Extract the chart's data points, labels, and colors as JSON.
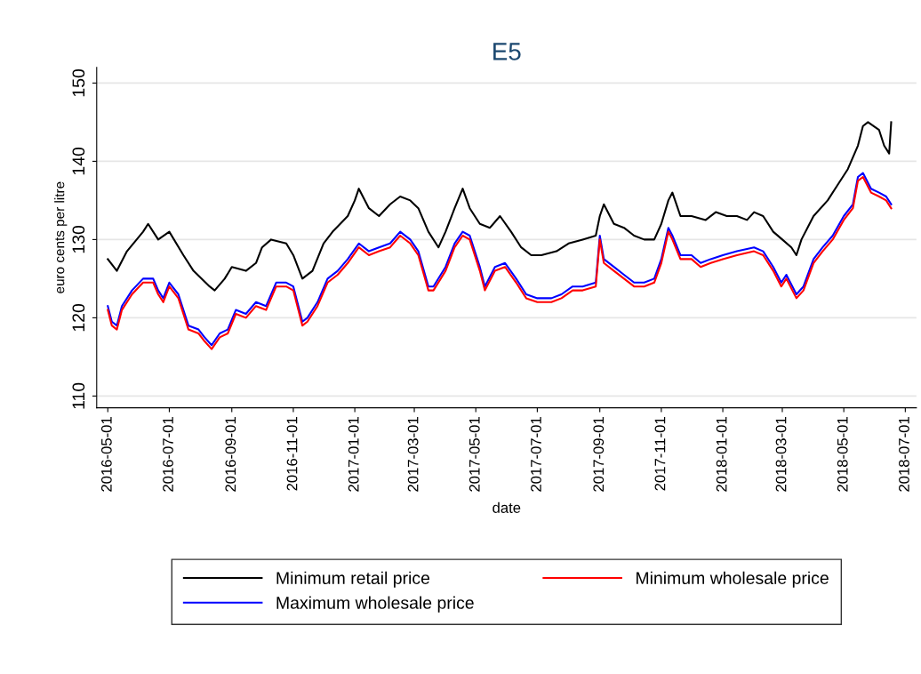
{
  "chart_data": {
    "type": "line",
    "title": "E5",
    "xlabel": "date",
    "ylabel": "euro cents per litre",
    "xlim": [
      "2016-04-20",
      "2018-07-12"
    ],
    "ylim": [
      108.5,
      152
    ],
    "xticks": [
      "2016-05-01",
      "2016-07-01",
      "2016-09-01",
      "2016-11-01",
      "2017-01-01",
      "2017-03-01",
      "2017-05-01",
      "2017-07-01",
      "2017-09-01",
      "2017-11-01",
      "2018-01-01",
      "2018-03-01",
      "2018-05-01",
      "2018-07-01"
    ],
    "yticks": [
      110,
      120,
      130,
      140,
      150
    ],
    "grid": "y",
    "legend": "bottom",
    "marker": "none",
    "line_style": "solid",
    "series": [
      {
        "name": "Minimum retail price",
        "color": "#000000",
        "x": [
          "2016-05-01",
          "2016-05-10",
          "2016-05-20",
          "2016-06-05",
          "2016-06-10",
          "2016-06-20",
          "2016-07-01",
          "2016-07-15",
          "2016-07-25",
          "2016-08-10",
          "2016-08-15",
          "2016-08-25",
          "2016-09-01",
          "2016-09-15",
          "2016-09-25",
          "2016-10-01",
          "2016-10-10",
          "2016-10-25",
          "2016-11-01",
          "2016-11-10",
          "2016-11-20",
          "2016-12-01",
          "2016-12-10",
          "2016-12-25",
          "2017-01-01",
          "2017-01-05",
          "2017-01-15",
          "2017-01-25",
          "2017-02-05",
          "2017-02-15",
          "2017-02-25",
          "2017-03-05",
          "2017-03-15",
          "2017-03-25",
          "2017-04-01",
          "2017-04-10",
          "2017-04-18",
          "2017-04-25",
          "2017-05-05",
          "2017-05-15",
          "2017-05-25",
          "2017-06-05",
          "2017-06-15",
          "2017-06-25",
          "2017-07-05",
          "2017-07-20",
          "2017-08-01",
          "2017-08-15",
          "2017-08-28",
          "2017-09-01",
          "2017-09-05",
          "2017-09-15",
          "2017-09-25",
          "2017-10-05",
          "2017-10-15",
          "2017-10-25",
          "2017-11-01",
          "2017-11-08",
          "2017-11-12",
          "2017-11-20",
          "2017-12-01",
          "2017-12-15",
          "2017-12-25",
          "2018-01-05",
          "2018-01-15",
          "2018-01-25",
          "2018-02-01",
          "2018-02-10",
          "2018-02-20",
          "2018-03-01",
          "2018-03-10",
          "2018-03-15",
          "2018-03-20",
          "2018-04-01",
          "2018-04-15",
          "2018-04-25",
          "2018-05-05",
          "2018-05-15",
          "2018-05-20",
          "2018-05-25",
          "2018-06-05",
          "2018-06-10",
          "2018-06-15",
          "2018-06-17"
        ],
        "values": [
          127.5,
          126,
          128.5,
          131,
          132,
          130,
          131,
          128,
          126,
          124,
          123.5,
          125,
          126.5,
          126,
          127,
          129,
          130,
          129.5,
          128,
          125,
          126,
          129.5,
          131,
          133,
          135,
          136.5,
          134,
          133,
          134.5,
          135.5,
          135,
          134,
          131,
          129,
          131,
          134,
          136.5,
          134,
          132,
          131.5,
          133,
          131,
          129,
          128,
          128,
          128.5,
          129.5,
          130,
          130.5,
          133,
          134.5,
          132,
          131.5,
          130.5,
          130,
          130,
          132,
          135,
          136,
          133,
          133,
          132.5,
          133.5,
          133,
          133,
          132.5,
          133.5,
          133,
          131,
          130,
          129,
          128,
          130,
          133,
          135,
          137,
          139,
          142,
          144.5,
          145,
          144,
          142,
          141,
          145
        ]
      },
      {
        "name": "Maximum wholesale price",
        "color": "#0000ff",
        "x": [
          "2016-05-01",
          "2016-05-05",
          "2016-05-10",
          "2016-05-15",
          "2016-05-25",
          "2016-06-05",
          "2016-06-15",
          "2016-06-20",
          "2016-06-25",
          "2016-07-01",
          "2016-07-10",
          "2016-07-20",
          "2016-07-30",
          "2016-08-05",
          "2016-08-12",
          "2016-08-20",
          "2016-08-28",
          "2016-09-05",
          "2016-09-15",
          "2016-09-25",
          "2016-10-05",
          "2016-10-15",
          "2016-10-25",
          "2016-11-01",
          "2016-11-10",
          "2016-11-15",
          "2016-11-25",
          "2016-12-05",
          "2016-12-15",
          "2016-12-25",
          "2017-01-05",
          "2017-01-15",
          "2017-01-25",
          "2017-02-05",
          "2017-02-15",
          "2017-02-25",
          "2017-03-05",
          "2017-03-15",
          "2017-03-20",
          "2017-04-01",
          "2017-04-10",
          "2017-04-18",
          "2017-04-25",
          "2017-05-05",
          "2017-05-10",
          "2017-05-20",
          "2017-05-30",
          "2017-06-10",
          "2017-06-20",
          "2017-07-01",
          "2017-07-15",
          "2017-07-25",
          "2017-08-05",
          "2017-08-15",
          "2017-08-28",
          "2017-09-01",
          "2017-09-05",
          "2017-09-15",
          "2017-09-25",
          "2017-10-05",
          "2017-10-15",
          "2017-10-25",
          "2017-11-01",
          "2017-11-08",
          "2017-11-12",
          "2017-11-20",
          "2017-12-01",
          "2017-12-10",
          "2017-12-20",
          "2018-01-01",
          "2018-01-15",
          "2018-02-01",
          "2018-02-10",
          "2018-02-20",
          "2018-02-28",
          "2018-03-05",
          "2018-03-15",
          "2018-03-22",
          "2018-04-01",
          "2018-04-10",
          "2018-04-20",
          "2018-05-01",
          "2018-05-10",
          "2018-05-15",
          "2018-05-20",
          "2018-05-28",
          "2018-06-05",
          "2018-06-12",
          "2018-06-17"
        ],
        "values": [
          121.5,
          119.5,
          119,
          121.5,
          123.5,
          125,
          125,
          123.5,
          122.5,
          124.5,
          123,
          119,
          118.5,
          117.5,
          116.5,
          118,
          118.5,
          121,
          120.5,
          122,
          121.5,
          124.5,
          124.5,
          124,
          119.5,
          120,
          122,
          125,
          126,
          127.5,
          129.5,
          128.5,
          129,
          129.5,
          131,
          130,
          128.5,
          124,
          124,
          126.5,
          129.5,
          131,
          130.5,
          126.5,
          124,
          126.5,
          127,
          125,
          123,
          122.5,
          122.5,
          123,
          124,
          124,
          124.5,
          130.5,
          127.5,
          126.5,
          125.5,
          124.5,
          124.5,
          125,
          127.5,
          131.5,
          130.5,
          128,
          128,
          127,
          127.5,
          128,
          128.5,
          129,
          128.5,
          126.5,
          124.5,
          125.5,
          123,
          124,
          127.5,
          129,
          130.5,
          133,
          134.5,
          138,
          138.5,
          136.5,
          136,
          135.5,
          134.5
        ]
      },
      {
        "name": "Minimum wholesale price",
        "color": "#ff0000",
        "x": [
          "2016-05-01",
          "2016-05-05",
          "2016-05-10",
          "2016-05-15",
          "2016-05-25",
          "2016-06-05",
          "2016-06-15",
          "2016-06-20",
          "2016-06-25",
          "2016-07-01",
          "2016-07-10",
          "2016-07-20",
          "2016-07-30",
          "2016-08-05",
          "2016-08-12",
          "2016-08-20",
          "2016-08-28",
          "2016-09-05",
          "2016-09-15",
          "2016-09-25",
          "2016-10-05",
          "2016-10-15",
          "2016-10-25",
          "2016-11-01",
          "2016-11-10",
          "2016-11-15",
          "2016-11-25",
          "2016-12-05",
          "2016-12-15",
          "2016-12-25",
          "2017-01-05",
          "2017-01-15",
          "2017-01-25",
          "2017-02-05",
          "2017-02-15",
          "2017-02-25",
          "2017-03-05",
          "2017-03-15",
          "2017-03-20",
          "2017-04-01",
          "2017-04-10",
          "2017-04-18",
          "2017-04-25",
          "2017-05-05",
          "2017-05-10",
          "2017-05-20",
          "2017-05-30",
          "2017-06-10",
          "2017-06-20",
          "2017-07-01",
          "2017-07-15",
          "2017-07-25",
          "2017-08-05",
          "2017-08-15",
          "2017-08-28",
          "2017-09-01",
          "2017-09-05",
          "2017-09-15",
          "2017-09-25",
          "2017-10-05",
          "2017-10-15",
          "2017-10-25",
          "2017-11-01",
          "2017-11-08",
          "2017-11-12",
          "2017-11-20",
          "2017-12-01",
          "2017-12-10",
          "2017-12-20",
          "2018-01-01",
          "2018-01-15",
          "2018-02-01",
          "2018-02-10",
          "2018-02-20",
          "2018-02-28",
          "2018-03-05",
          "2018-03-15",
          "2018-03-22",
          "2018-04-01",
          "2018-04-10",
          "2018-04-20",
          "2018-05-01",
          "2018-05-10",
          "2018-05-15",
          "2018-05-20",
          "2018-05-28",
          "2018-06-05",
          "2018-06-12",
          "2018-06-17"
        ],
        "values": [
          121,
          119,
          118.5,
          121,
          123,
          124.5,
          124.5,
          123,
          122,
          124,
          122.5,
          118.5,
          118,
          117,
          116,
          117.5,
          118,
          120.5,
          120,
          121.5,
          121,
          124,
          124,
          123.5,
          119,
          119.5,
          121.5,
          124.5,
          125.5,
          127,
          129,
          128,
          128.5,
          129,
          130.5,
          129.5,
          128,
          123.5,
          123.5,
          126,
          129,
          130.5,
          130,
          126,
          123.5,
          126,
          126.5,
          124.5,
          122.5,
          122,
          122,
          122.5,
          123.5,
          123.5,
          124,
          130,
          127,
          126,
          125,
          124,
          124,
          124.5,
          127,
          131,
          130,
          127.5,
          127.5,
          126.5,
          127,
          127.5,
          128,
          128.5,
          128,
          126,
          124,
          125,
          122.5,
          123.5,
          127,
          128.5,
          130,
          132.5,
          134,
          137.5,
          138,
          136,
          135.5,
          135,
          134
        ]
      }
    ]
  }
}
